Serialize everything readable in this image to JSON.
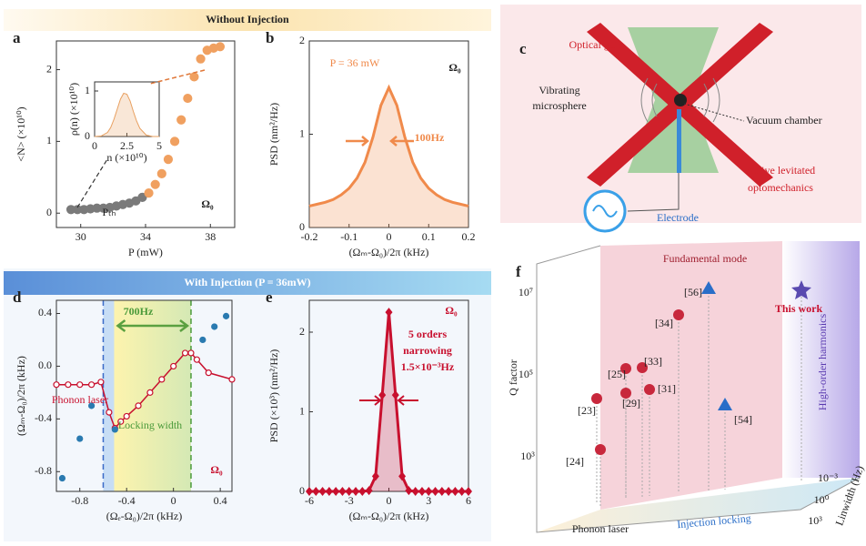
{
  "headers": {
    "top": "Without Injection",
    "bottom": "With Injection (P = 36mW)"
  },
  "chart_data": [
    {
      "type": "scatter",
      "label": "a",
      "xlabel": "P (mW)",
      "ylabel": "<N> (×10¹⁰)",
      "xlim": [
        28.5,
        39.5
      ],
      "ylim": [
        -0.2,
        2.4
      ],
      "xticks": [
        30,
        34,
        38
      ],
      "yticks": [
        0,
        1,
        2
      ],
      "annotations": [
        "Ω₀",
        "Pₜₕ"
      ],
      "series": [
        {
          "color": "#7a7a7a",
          "x": [
            29.4,
            29.8,
            30.2,
            30.6,
            31.0,
            31.4,
            31.8,
            32.2,
            32.6,
            33.0,
            33.4,
            33.8
          ],
          "values": [
            0.05,
            0.05,
            0.05,
            0.06,
            0.07,
            0.07,
            0.08,
            0.1,
            0.12,
            0.14,
            0.17,
            0.22
          ]
        },
        {
          "color": "#f0a060",
          "x": [
            34.2,
            34.6,
            35.0,
            35.4,
            35.8,
            36.2,
            36.6,
            37.0,
            37.4,
            37.8,
            38.2,
            38.6
          ],
          "values": [
            0.28,
            0.4,
            0.55,
            0.75,
            1.0,
            1.3,
            1.6,
            1.9,
            2.15,
            2.27,
            2.3,
            2.32
          ]
        }
      ]
    },
    {
      "type": "area",
      "xlabel": "n (×10¹⁰)",
      "ylabel": "ρ(n) (×10¹⁰)",
      "xlim": [
        0,
        5
      ],
      "ylim": [
        0,
        1.2
      ],
      "xticks": [
        0,
        2.5,
        5
      ],
      "yticks": [
        0,
        1
      ],
      "x": [
        0,
        0.5,
        1,
        1.25,
        1.5,
        1.75,
        2,
        2.25,
        2.5,
        2.75,
        3,
        3.25,
        3.5,
        4,
        4.5,
        5
      ],
      "series": [
        {
          "color": "#e8a060",
          "values": [
            0,
            0.01,
            0.09,
            0.2,
            0.38,
            0.6,
            0.82,
            0.95,
            0.93,
            0.78,
            0.55,
            0.34,
            0.18,
            0.03,
            0,
            0
          ]
        }
      ]
    },
    {
      "type": "area",
      "label": "b",
      "xlabel": "(Ωₘ-Ω₀)/2π (kHz)",
      "ylabel": "PSD (nm²/Hz)",
      "xlim": [
        -0.2,
        0.2
      ],
      "ylim": [
        0,
        2
      ],
      "xticks": [
        -0.2,
        -0.1,
        0,
        0.1,
        0.2
      ],
      "yticks": [
        0,
        1,
        2
      ],
      "annotations": [
        "P = 36 mW",
        "Ω₀",
        "100Hz"
      ],
      "x": [
        -0.2,
        -0.18,
        -0.16,
        -0.14,
        -0.12,
        -0.1,
        -0.08,
        -0.06,
        -0.04,
        -0.02,
        0,
        0.02,
        0.04,
        0.06,
        0.08,
        0.1,
        0.12,
        0.14,
        0.16,
        0.18,
        0.2
      ],
      "series": [
        {
          "color": "#f08a4b",
          "values": [
            0.23,
            0.25,
            0.27,
            0.3,
            0.35,
            0.42,
            0.53,
            0.7,
            0.97,
            1.31,
            1.5,
            1.31,
            0.97,
            0.7,
            0.53,
            0.42,
            0.35,
            0.3,
            0.27,
            0.25,
            0.23
          ]
        }
      ]
    },
    {
      "type": "line",
      "label": "d",
      "xlabel": "(Ωₑ-Ω₀)/2π (kHz)",
      "ylabel": "(Ωₘ-Ω₀)/2π (kHz)",
      "xlim": [
        -1.0,
        0.5
      ],
      "ylim": [
        -0.95,
        0.5
      ],
      "xticks": [
        -0.8,
        -0.4,
        0,
        0.4
      ],
      "yticks": [
        {
          "value": 0.4,
          "label": "0.4"
        },
        {
          "value": 0,
          "label": "0.0"
        },
        {
          "value": -0.4,
          "label": "-0.4"
        },
        {
          "value": -0.8,
          "label": "-0.8"
        }
      ],
      "vlines": [
        -0.6,
        0.15
      ],
      "annotations": [
        "700Hz",
        "Phonon laser",
        "Locking width",
        "Ω₀"
      ],
      "series": [
        {
          "color": "#c8102e",
          "mode": "lines+markers",
          "x": [
            -1.0,
            -0.9,
            -0.8,
            -0.7,
            -0.62,
            -0.55,
            -0.5,
            -0.45,
            -0.4,
            -0.3,
            -0.2,
            -0.1,
            0,
            0.1,
            0.15,
            0.2,
            0.3,
            0.5
          ],
          "values": [
            -0.14,
            -0.14,
            -0.14,
            -0.14,
            -0.12,
            -0.35,
            -0.47,
            -0.42,
            -0.38,
            -0.3,
            -0.2,
            -0.1,
            0.0,
            0.1,
            0.1,
            0.05,
            -0.05,
            -0.1
          ]
        },
        {
          "color": "#2a7ab0",
          "mode": "markers",
          "x": [
            -0.95,
            -0.8,
            -0.7,
            -0.5,
            0.25,
            0.35,
            0.45
          ],
          "values": [
            -0.85,
            -0.55,
            -0.3,
            -0.48,
            0.2,
            0.3,
            0.38
          ]
        }
      ]
    },
    {
      "type": "area",
      "label": "e",
      "xlabel": "(Ωₘ-Ω₀)/2π (kHz)",
      "ylabel": "PSD (×10³) (nm²/Hz)",
      "xlim": [
        -6,
        6
      ],
      "ylim": [
        0,
        2.4
      ],
      "xticks": [
        -6,
        -3,
        0,
        3,
        6
      ],
      "yticks": [
        0,
        1,
        2
      ],
      "annotations": [
        "Ω₀",
        "5 orders",
        "narrowing",
        "1.5×10⁻³Hz"
      ],
      "x": [
        -6,
        -5.5,
        -5,
        -4.5,
        -4,
        -3.5,
        -3,
        -2.5,
        -2,
        -1.5,
        -1,
        -0.5,
        0,
        0.5,
        1,
        1.5,
        2,
        2.5,
        3,
        3.5,
        4,
        4.5,
        5,
        5.5,
        6
      ],
      "series": [
        {
          "color": "#c8102e",
          "marker": "diamond",
          "values": [
            0,
            0,
            0,
            0,
            0,
            0,
            0,
            0,
            0,
            0.01,
            0.19,
            1.21,
            2.25,
            1.21,
            0.19,
            0.01,
            0,
            0,
            0,
            0,
            0,
            0,
            0,
            0,
            0
          ]
        }
      ]
    }
  ],
  "panel_c": {
    "label": "c",
    "texts": [
      "Optical gain",
      "Vibrating",
      "microsphere",
      "Vacuum chamber",
      "Active levitated",
      "optomechanics",
      "Electrode"
    ]
  },
  "panel_f": {
    "label": "f",
    "axis_q": "Q factor",
    "axis_lw": "Linwidth (Hz)",
    "qticks": [
      "10⁷",
      "10⁵",
      "10³"
    ],
    "lwticks": [
      "10⁻³",
      "10⁰",
      "10³"
    ],
    "texts": [
      "Fundamental mode",
      "This work",
      "High-order harmonics",
      "Phonon laser",
      "Injection locking"
    ],
    "refs": [
      "[56]",
      "[34]",
      "[33]",
      "[25]",
      "[31]",
      "[29]",
      "[23]",
      "[24]",
      "[54]"
    ]
  }
}
